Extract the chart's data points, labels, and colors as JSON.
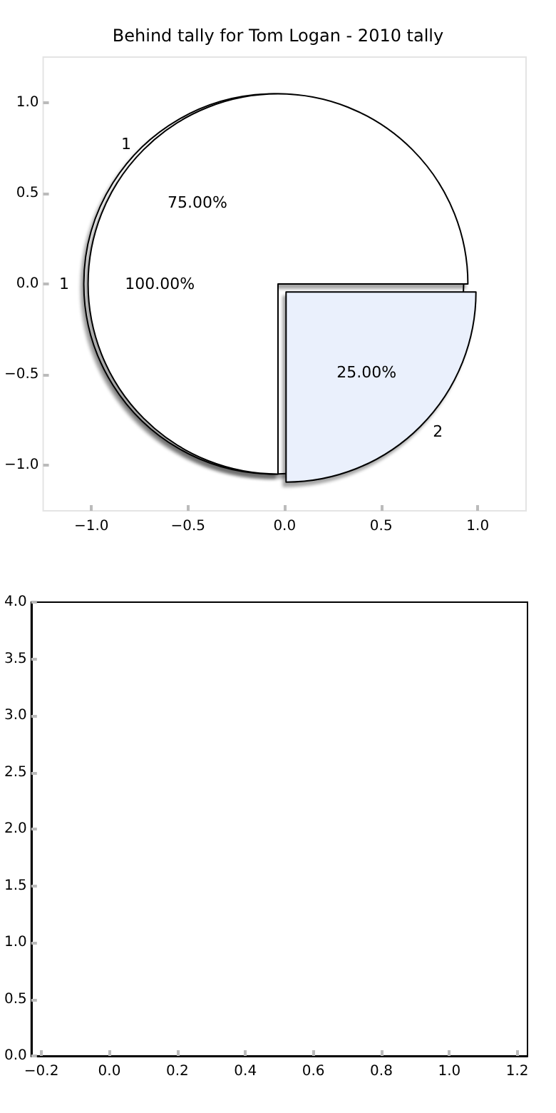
{
  "chart_data": [
    {
      "type": "scatter",
      "title": "Behind tally for Tom Logan - 2010 tally",
      "xlim": [
        -1.25,
        1.25
      ],
      "ylim": [
        -1.25,
        1.25
      ],
      "xticks": [
        {
          "value": -1,
          "label": "−1.0"
        },
        {
          "value": -0.5,
          "label": "−0.5"
        },
        {
          "value": 0,
          "label": "0.0"
        },
        {
          "value": 0.5,
          "label": "0.5"
        },
        {
          "value": 1,
          "label": "1.0"
        }
      ],
      "yticks": [
        {
          "value": -1,
          "label": "−1.0"
        },
        {
          "value": -0.5,
          "label": "−0.5"
        },
        {
          "value": 0,
          "label": "0.0"
        },
        {
          "value": 0.5,
          "label": "0.5"
        },
        {
          "value": 1,
          "label": "1.0"
        }
      ],
      "grid": false
    },
    {
      "type": "pie",
      "categories": [
        "1"
      ],
      "values": [
        100
      ],
      "colors": [
        "#ffffff"
      ],
      "value_labels": [
        "100.00%"
      ]
    },
    {
      "type": "pie",
      "categories": [
        "1",
        "2"
      ],
      "values": [
        75,
        25
      ],
      "colors": [
        "#ffffff",
        "#eaf0fc"
      ],
      "value_labels": [
        "75.00%",
        "25.00%"
      ]
    },
    {
      "type": "scatter",
      "xlim": [
        -0.23,
        1.23
      ],
      "ylim": [
        0,
        4
      ],
      "xticks": [
        {
          "value": -0.2,
          "label": "−0.2"
        },
        {
          "value": 0,
          "label": "0.0"
        },
        {
          "value": 0.2,
          "label": "0.2"
        },
        {
          "value": 0.4,
          "label": "0.4"
        },
        {
          "value": 0.6,
          "label": "0.6"
        },
        {
          "value": 0.8,
          "label": "0.8"
        },
        {
          "value": 1,
          "label": "1.0"
        },
        {
          "value": 1.2,
          "label": "1.2"
        }
      ],
      "yticks": [
        {
          "value": 0,
          "label": "0.0"
        },
        {
          "value": 0.5,
          "label": "0.5"
        },
        {
          "value": 1,
          "label": "1.0"
        },
        {
          "value": 1.5,
          "label": "1.5"
        },
        {
          "value": 2,
          "label": "2.0"
        },
        {
          "value": 2.5,
          "label": "2.5"
        },
        {
          "value": 3,
          "label": "3.0"
        },
        {
          "value": 3.5,
          "label": "3.5"
        },
        {
          "value": 4,
          "label": "4.0"
        }
      ],
      "grid": false
    }
  ]
}
